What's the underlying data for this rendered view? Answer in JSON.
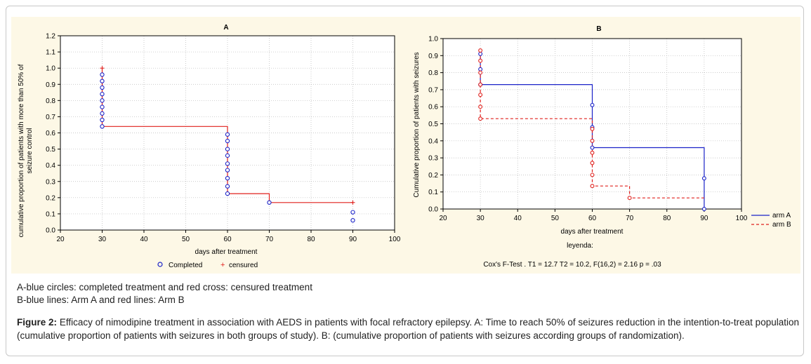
{
  "notes": {
    "line1": "A-blue circles: completed treatment and red cross: censured treatment",
    "line2": "B-blue lines: Arm A and red lines: Arm B"
  },
  "caption": {
    "label": "Figure 2:",
    "text": " Efficacy of nimodipine treatment in association with AEDS in patients with focal refractory epilepsy. A: Time to reach 50% of seizures reduction in the intention-to-treat population (cumulative proportion of patients with seizures in both groups of study). B: (cumulative proportion of patients with seizures according groups of randomization)."
  },
  "chart_data": [
    {
      "type": "line",
      "title": "A",
      "xlabel": "days after treatment",
      "ylabel_line1": "cumulative proportion of patients with more than 50% of",
      "ylabel_line2": "seizure control",
      "xlim": [
        20,
        100
      ],
      "ylim": [
        0,
        1.2
      ],
      "xticks": [
        20,
        30,
        40,
        50,
        60,
        70,
        80,
        90,
        100
      ],
      "yticks": [
        0.0,
        0.1,
        0.2,
        0.3,
        0.4,
        0.5,
        0.6,
        0.7,
        0.8,
        0.9,
        1.0,
        1.1,
        1.2
      ],
      "grid": true,
      "colors": {
        "line": "#e0201c",
        "completed": "#1a22c8",
        "censured": "#e0201c"
      },
      "step": {
        "x": [
          30,
          30,
          60,
          60,
          70,
          70,
          90
        ],
        "y": [
          1.0,
          0.64,
          0.64,
          0.225,
          0.225,
          0.17,
          0.17
        ]
      },
      "completed": [
        {
          "x": 30,
          "y": 0.96
        },
        {
          "x": 30,
          "y": 0.92
        },
        {
          "x": 30,
          "y": 0.88
        },
        {
          "x": 30,
          "y": 0.84
        },
        {
          "x": 30,
          "y": 0.8
        },
        {
          "x": 30,
          "y": 0.76
        },
        {
          "x": 30,
          "y": 0.72
        },
        {
          "x": 30,
          "y": 0.68
        },
        {
          "x": 30,
          "y": 0.64
        },
        {
          "x": 60,
          "y": 0.59
        },
        {
          "x": 60,
          "y": 0.55
        },
        {
          "x": 60,
          "y": 0.5
        },
        {
          "x": 60,
          "y": 0.46
        },
        {
          "x": 60,
          "y": 0.41
        },
        {
          "x": 60,
          "y": 0.37
        },
        {
          "x": 60,
          "y": 0.32
        },
        {
          "x": 60,
          "y": 0.27
        },
        {
          "x": 60,
          "y": 0.225
        },
        {
          "x": 70,
          "y": 0.17
        },
        {
          "x": 90,
          "y": 0.11
        },
        {
          "x": 90,
          "y": 0.06
        }
      ],
      "censured": [
        {
          "x": 30,
          "y": 1.0
        },
        {
          "x": 90,
          "y": 0.17
        }
      ],
      "legend": {
        "completed": "Completed",
        "censured": "censured",
        "placement": "bottom"
      }
    },
    {
      "type": "line",
      "title": "B",
      "xlabel": "days after treatment",
      "xlabel2": "leyenda:",
      "ylabel": "Cumulative proportion of patients with seizures",
      "footnote": "Cox's F-Test . T1 = 12.7 T2 = 10.2, F(16,2) = 2.16 p = .03",
      "xlim": [
        20,
        100
      ],
      "ylim": [
        0,
        1.0
      ],
      "xticks": [
        20,
        30,
        40,
        50,
        60,
        70,
        80,
        90,
        100
      ],
      "yticks": [
        0.0,
        0.1,
        0.2,
        0.3,
        0.4,
        0.5,
        0.6,
        0.7,
        0.8,
        0.9,
        1.0
      ],
      "grid": true,
      "series": [
        {
          "name": "arm A",
          "color": "#1a22c8",
          "style": "solid",
          "step": {
            "x": [
              30,
              30,
              60,
              60,
              90,
              90
            ],
            "y": [
              0.93,
              0.73,
              0.73,
              0.36,
              0.36,
              0.0
            ]
          },
          "markers": [
            0.91,
            0.82,
            0.73,
            0.61,
            0.48,
            0.36,
            0.18,
            0.0
          ],
          "marker_x": [
            30,
            30,
            30,
            60,
            60,
            60,
            90,
            90
          ]
        },
        {
          "name": "arm B",
          "color": "#e0201c",
          "style": "dashed",
          "step": {
            "x": [
              30,
              30,
              60,
              60,
              70,
              70,
              90
            ],
            "y": [
              0.93,
              0.53,
              0.53,
              0.135,
              0.135,
              0.065,
              0.065
            ]
          },
          "markers": [
            0.93,
            0.87,
            0.8,
            0.73,
            0.67,
            0.6,
            0.53,
            0.47,
            0.4,
            0.33,
            0.27,
            0.2,
            0.135,
            0.065
          ],
          "marker_x": [
            30,
            30,
            30,
            30,
            30,
            30,
            30,
            60,
            60,
            60,
            60,
            60,
            60,
            70
          ]
        }
      ],
      "legend": {
        "placement": "right"
      }
    }
  ]
}
